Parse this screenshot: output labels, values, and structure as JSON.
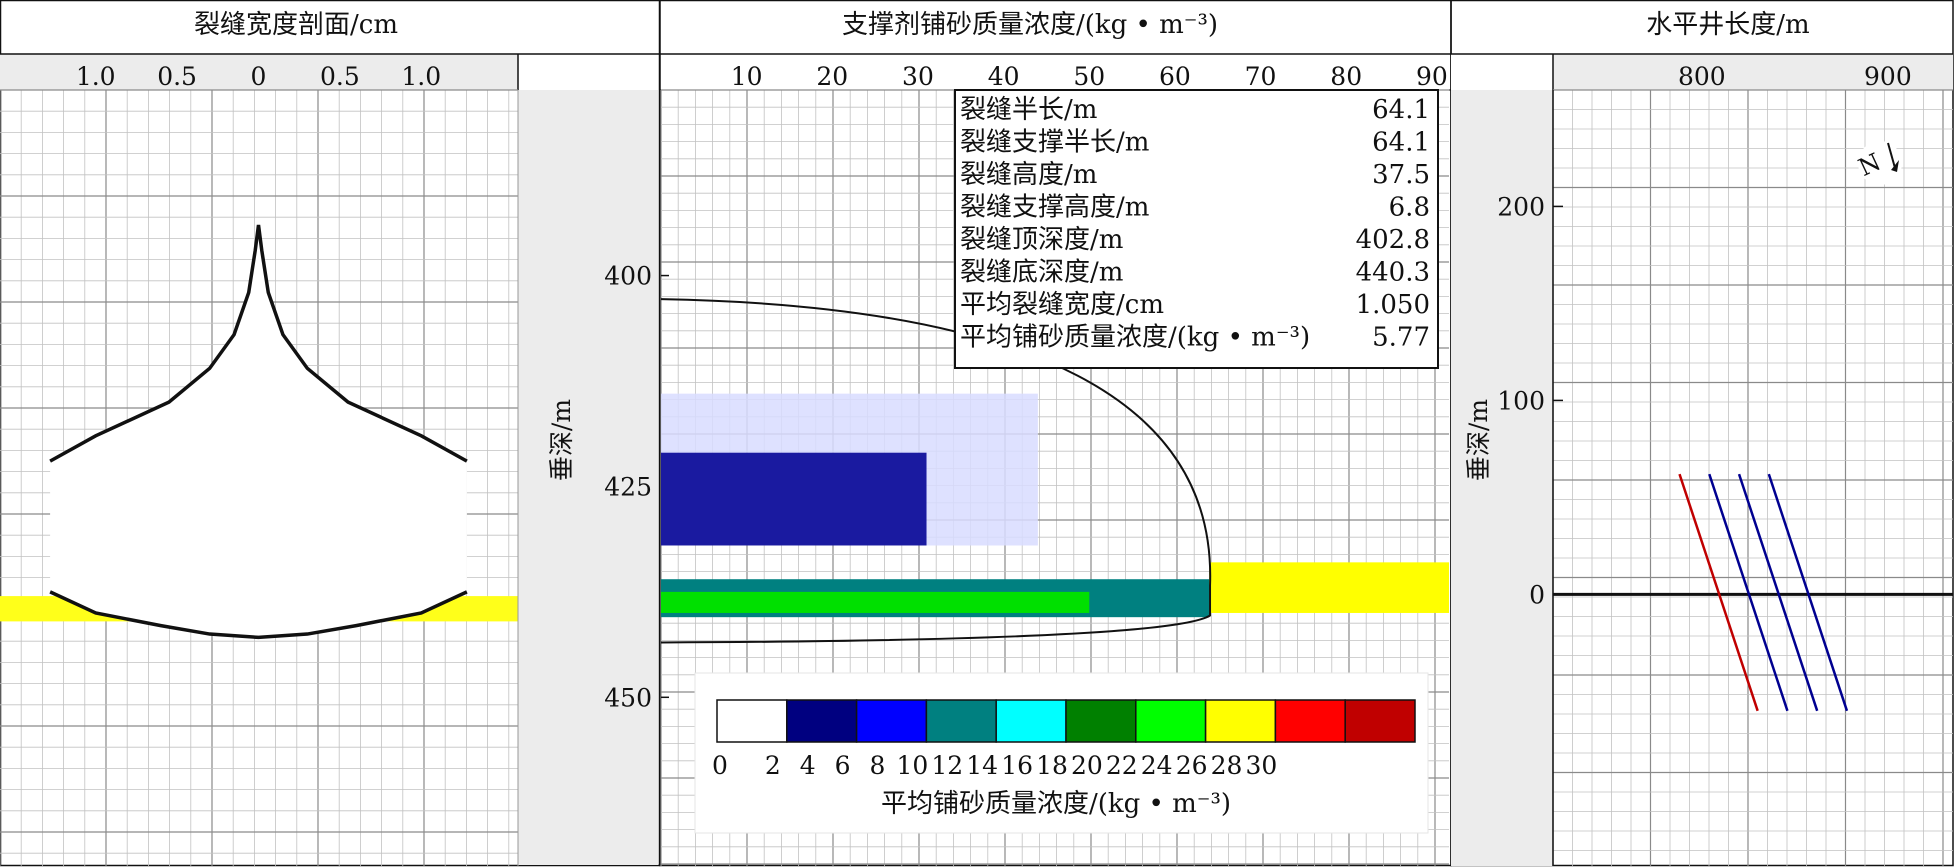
{
  "chart_data": [
    {
      "type": "area",
      "title": "裂缝宽度剖面/cm",
      "x_ticks": [
        "1.0",
        "0.5",
        "0",
        "0.5",
        "1.0"
      ],
      "x_tick_values": [
        -1.0,
        -0.5,
        0,
        0.5,
        1.0
      ],
      "xlim": [
        -1.25,
        1.25
      ],
      "ylim": [
        378,
        470
      ],
      "grid": true,
      "series": [
        {
          "shape": "fracture-width-profile",
          "upper": [
            [
              -1.28,
              422
            ],
            [
              -1.0,
              419
            ],
            [
              -0.55,
              415
            ],
            [
              -0.3,
              411
            ],
            [
              -0.15,
              407
            ],
            [
              -0.06,
              402
            ],
            [
              -0.02,
              397
            ],
            [
              0,
              394
            ],
            [
              0.02,
              397
            ],
            [
              0.06,
              402
            ],
            [
              0.15,
              407
            ],
            [
              0.3,
              411
            ],
            [
              0.55,
              415
            ],
            [
              1.0,
              419
            ],
            [
              1.28,
              422
            ]
          ],
          "lower": [
            [
              -1.28,
              437.5
            ],
            [
              -1.0,
              440
            ],
            [
              -0.6,
              441.5
            ],
            [
              -0.3,
              442.5
            ],
            [
              0,
              442.9
            ],
            [
              0.3,
              442.5
            ],
            [
              0.6,
              441.5
            ],
            [
              1.0,
              440
            ],
            [
              1.28,
              437.5
            ]
          ]
        }
      ],
      "proppant_band": [
        438,
        441
      ]
    },
    {
      "type": "heatmap",
      "title": "支撑剂铺砂质量浓度/(kg • m⁻³)",
      "ylabel": "垂深/m",
      "x_ticks": [
        "10",
        "20",
        "30",
        "40",
        "50",
        "60",
        "70",
        "80",
        "90"
      ],
      "y_ticks": [
        "400",
        "425",
        "450"
      ],
      "xlim": [
        0,
        92
      ],
      "ylim": [
        378,
        470
      ],
      "fracture_half_length_m": 64.1,
      "fracture_top_m": 402.8,
      "fracture_bottom_m": 440.3,
      "info_table": [
        {
          "label": "裂缝半长/m",
          "value": "64.1"
        },
        {
          "label": "裂缝支撑半长/m",
          "value": "64.1"
        },
        {
          "label": "裂缝高度/m",
          "value": "37.5"
        },
        {
          "label": "裂缝支撑高度/m",
          "value": "6.8"
        },
        {
          "label": "裂缝顶深度/m",
          "value": "402.8"
        },
        {
          "label": "裂缝底深度/m",
          "value": "440.3"
        },
        {
          "label": "平均裂缝宽度/cm",
          "value": "1.050"
        },
        {
          "label": "平均铺砂质量浓度/(kg • m⁻³)",
          "value": "5.77"
        }
      ],
      "colorbar": {
        "label": "平均铺砂质量浓度/(kg • m⁻³)",
        "ticks": [
          "0",
          "2",
          "4",
          "6",
          "8",
          "10",
          "12",
          "14",
          "16",
          "18",
          "20",
          "22",
          "24",
          "26",
          "28",
          "30"
        ],
        "colors": [
          "#ffffff",
          "#000080",
          "#0000ff",
          "#008080",
          "#00ffff",
          "#008000",
          "#00ff00",
          "#ffff00",
          "#ff0000",
          "#c00000"
        ]
      },
      "zones": [
        {
          "name": "low",
          "color": "#d8dcff",
          "x": [
            0,
            44
          ],
          "y": [
            414,
            432
          ]
        },
        {
          "name": "navy",
          "color": "#1a1aa0",
          "x": [
            0,
            31
          ],
          "y": [
            421,
            432
          ]
        },
        {
          "name": "teal",
          "color": "#008080",
          "x": [
            0,
            64
          ],
          "y": [
            436,
            440.5
          ]
        },
        {
          "name": "green",
          "color": "#00e000",
          "x": [
            0,
            50
          ],
          "y": [
            437.5,
            440
          ]
        },
        {
          "name": "yellow-strip",
          "color": "#ffff00",
          "x": [
            64,
            92
          ],
          "y": [
            434,
            440
          ]
        }
      ]
    },
    {
      "type": "line",
      "title": "水平井长度/m",
      "ylabel": "垂深/m",
      "x_ticks": [
        "800",
        "900"
      ],
      "x_tick_values": [
        800,
        900
      ],
      "y_ticks": [
        "200",
        "100",
        "0"
      ],
      "y_tick_values": [
        200,
        100,
        0
      ],
      "xlim": [
        720,
        935
      ],
      "ylim": [
        -140,
        260
      ],
      "compass": "N",
      "series": [
        {
          "color": "#c00000",
          "x": [
            788,
            830
          ],
          "y": [
            62,
            -60
          ]
        },
        {
          "color": "#000090",
          "x": [
            804,
            846
          ],
          "y": [
            62,
            -60
          ]
        },
        {
          "color": "#000090",
          "x": [
            820,
            862
          ],
          "y": [
            62,
            -60
          ]
        },
        {
          "color": "#000090",
          "x": [
            836,
            878
          ],
          "y": [
            62,
            -60
          ]
        }
      ]
    }
  ]
}
